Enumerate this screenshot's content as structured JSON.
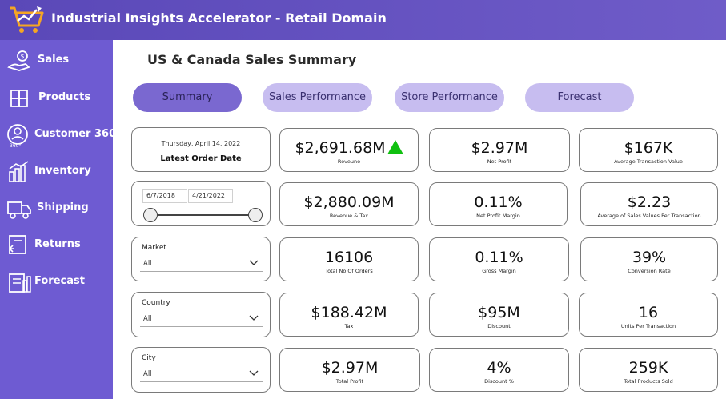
{
  "app": {
    "title": "Industrial Insights Accelerator - Retail Domain"
  },
  "sidebar": {
    "items": [
      {
        "label": "Sales",
        "icon": "sales-icon"
      },
      {
        "label": "Products",
        "icon": "products-icon"
      },
      {
        "label": "Customer 360",
        "icon": "customer-360-icon"
      },
      {
        "label": "Inventory",
        "icon": "inventory-icon"
      },
      {
        "label": "Shipping",
        "icon": "shipping-icon"
      },
      {
        "label": "Returns",
        "icon": "returns-icon"
      },
      {
        "label": "Forecast",
        "icon": "forecast-icon"
      }
    ]
  },
  "page": {
    "title": "US & Canada Sales Summary"
  },
  "tabs": [
    {
      "label": "Summary",
      "active": true
    },
    {
      "label": "Sales Performance",
      "active": false
    },
    {
      "label": "Store Performance",
      "active": false
    },
    {
      "label": "Forecast",
      "active": false
    }
  ],
  "latest_order": {
    "date": "Thursday, April 14, 2022",
    "label": "Latest Order Date"
  },
  "date_range": {
    "start": "6/7/2018",
    "end": "4/21/2022"
  },
  "filters": {
    "market": {
      "title": "Market",
      "value": "All"
    },
    "country": {
      "title": "Country",
      "value": "All"
    },
    "city": {
      "title": "City",
      "value": "All"
    }
  },
  "kpis": [
    {
      "value": "$2,691.68M",
      "label": "Reveune",
      "trend": "up"
    },
    {
      "value": "$2.97M",
      "label": "Net Profit"
    },
    {
      "value": "$167K",
      "label": "Average Transaction Value"
    },
    {
      "value": "$2,880.09M",
      "label": "Revenue & Tax"
    },
    {
      "value": "0.11%",
      "label": "Net Profit Margin"
    },
    {
      "value": "$2.23",
      "label": "Average of Sales Values Per Transaction"
    },
    {
      "value": "16106",
      "label": "Total No Of Orders"
    },
    {
      "value": "0.11%",
      "label": "Gross Margin"
    },
    {
      "value": "39%",
      "label": "Conversion Rate"
    },
    {
      "value": "$188.42M",
      "label": "Tax"
    },
    {
      "value": "$95M",
      "label": "Discount"
    },
    {
      "value": "16",
      "label": "Units Per Transaction"
    },
    {
      "value": "$2.97M",
      "label": "Total Profit"
    },
    {
      "value": "4%",
      "label": "Discount %"
    },
    {
      "value": "259K",
      "label": "Total Products Sold"
    }
  ],
  "colors": {
    "header": "#5a48b8",
    "sidebar": "#6e5bd2",
    "tab": "#c7bdf0",
    "tab_active": "#7a68d0",
    "trend_up": "#10c010"
  }
}
